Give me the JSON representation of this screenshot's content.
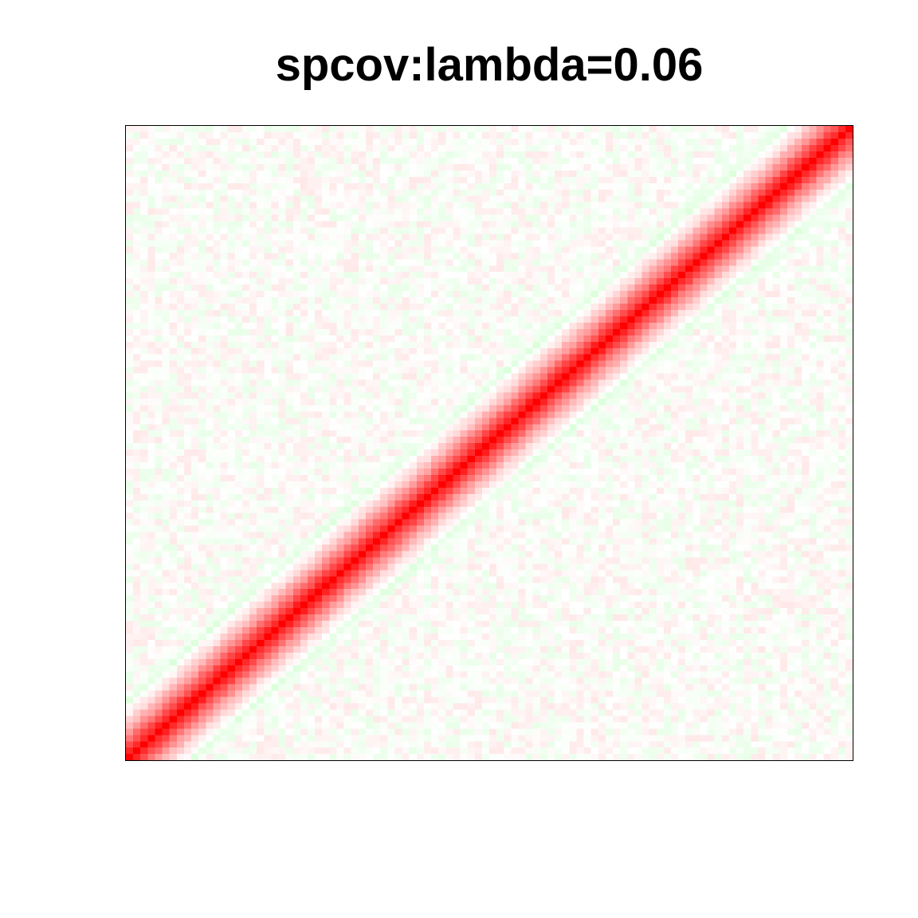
{
  "chart_data": {
    "type": "heatmap",
    "title": "spcov:lambda=0.06",
    "xlabel": "",
    "ylabel": "",
    "n_variables": 100,
    "diagonal_orientation": "bottom-left to top-right",
    "diagonal_value": 1.0,
    "band_profile": [
      {
        "offset": 0,
        "value": 1.0
      },
      {
        "offset": 1,
        "value": 0.85
      },
      {
        "offset": 2,
        "value": 0.7
      },
      {
        "offset": 3,
        "value": 0.55
      },
      {
        "offset": 4,
        "value": 0.4
      },
      {
        "offset": 5,
        "value": 0.28
      },
      {
        "offset": 6,
        "value": 0.16
      },
      {
        "offset": 7,
        "value": 0.08
      },
      {
        "offset": 8,
        "value": 0.0
      },
      {
        "offset": 9,
        "value": -0.1
      },
      {
        "offset": 10,
        "value": -0.06
      }
    ],
    "off_band_range": [
      -0.15,
      0.15
    ],
    "color_scale": {
      "negative": "#00ff00",
      "zero": "#ffffff",
      "positive": "#ff0000"
    },
    "grid": false,
    "legend": "none"
  }
}
